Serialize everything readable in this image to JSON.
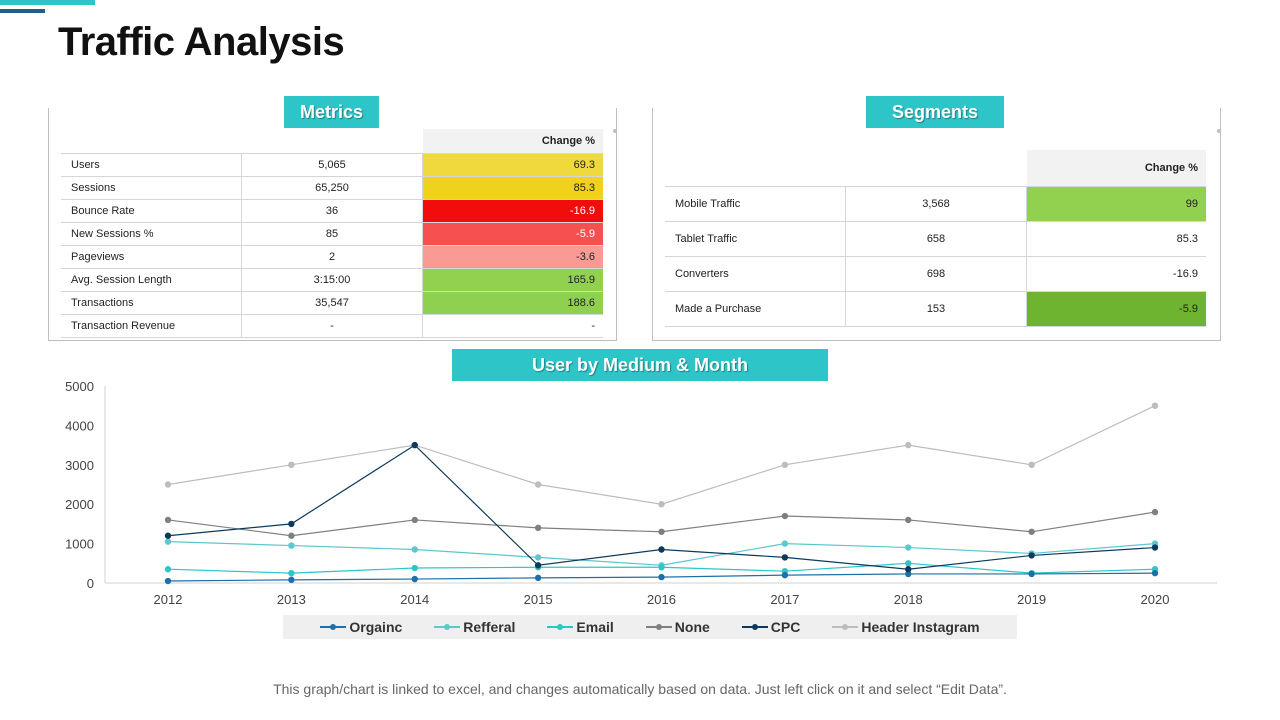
{
  "page": {
    "title": "Traffic Analysis",
    "footnote": "This graph/chart is linked to excel, and changes automatically based on data. Just left click on it and select “Edit Data”."
  },
  "metrics": {
    "label": "Metrics",
    "change_header": "Change %",
    "rows": [
      {
        "name": "Users",
        "value": "5,065",
        "change": "69.3",
        "color": "#efd93c",
        "text_color": "#222222"
      },
      {
        "name": "Sessions",
        "value": "65,250",
        "change": "85.3",
        "color": "#f0d21c",
        "text_color": "#222222"
      },
      {
        "name": "Bounce Rate",
        "value": "36",
        "change": "-16.9",
        "color": "#f20d0d",
        "text_color": "#ffffff"
      },
      {
        "name": "New Sessions %",
        "value": "85",
        "change": "-5.9",
        "color": "#f75050",
        "text_color": "#ffffff"
      },
      {
        "name": "Pageviews",
        "value": "2",
        "change": "-3.6",
        "color": "#f99a95",
        "text_color": "#222222"
      },
      {
        "name": "Avg. Session Length",
        "value": "3:15:00",
        "change": "165.9",
        "color": "#92d050",
        "text_color": "#222222"
      },
      {
        "name": "Transactions",
        "value": "35,547",
        "change": "188.6",
        "color": "#8fd14f",
        "text_color": "#222222"
      },
      {
        "name": "Transaction Revenue",
        "value": "-",
        "change": "-",
        "color": "#ffffff",
        "text_color": "#222222"
      }
    ]
  },
  "segments": {
    "label": "Segments",
    "change_header": "Change %",
    "rows": [
      {
        "name": "Mobile Traffic",
        "value": "3,568",
        "change": "99",
        "color": "#92d050",
        "text_color": "#222222"
      },
      {
        "name": "Tablet Traffic",
        "value": "658",
        "change": "85.3",
        "color": "#ffffff",
        "text_color": "#222222"
      },
      {
        "name": "Converters",
        "value": "698",
        "change": "-16.9",
        "color": "#ffffff",
        "text_color": "#222222"
      },
      {
        "name": "Made a Purchase",
        "value": "153",
        "change": "-5.9",
        "color": "#6fb431",
        "text_color": "#222222"
      }
    ]
  },
  "chart_data": {
    "type": "line",
    "title": "User by Medium & Month",
    "x": [
      "2012",
      "2013",
      "2014",
      "2015",
      "2016",
      "2017",
      "2018",
      "2019",
      "2020"
    ],
    "y_ticks": [
      "0",
      "1000",
      "2000",
      "3000",
      "4000",
      "5000"
    ],
    "ylim": [
      0,
      5000
    ],
    "grid": false,
    "legend_position": "bottom",
    "series": [
      {
        "name": "Orgainc",
        "color": "#1f6ea8",
        "values": [
          50,
          80,
          100,
          130,
          150,
          200,
          230,
          230,
          250
        ]
      },
      {
        "name": "Refferal",
        "color": "#5cc7cc",
        "values": [
          1050,
          950,
          850,
          650,
          450,
          1000,
          900,
          750,
          1000
        ]
      },
      {
        "name": "Email",
        "color": "#2ec5c8",
        "values": [
          350,
          250,
          380,
          400,
          400,
          300,
          500,
          250,
          350
        ]
      },
      {
        "name": "None",
        "color": "#7f7f7f",
        "values": [
          1600,
          1200,
          1600,
          1400,
          1300,
          1700,
          1600,
          1300,
          1800
        ]
      },
      {
        "name": "CPC",
        "color": "#0d3a5c",
        "values": [
          1200,
          1500,
          3500,
          450,
          850,
          650,
          350,
          700,
          900
        ]
      },
      {
        "name": "Header Instagram",
        "color": "#bdbdbd",
        "values": [
          2500,
          3000,
          3500,
          2500,
          2000,
          3000,
          3500,
          3000,
          4500
        ]
      }
    ]
  }
}
